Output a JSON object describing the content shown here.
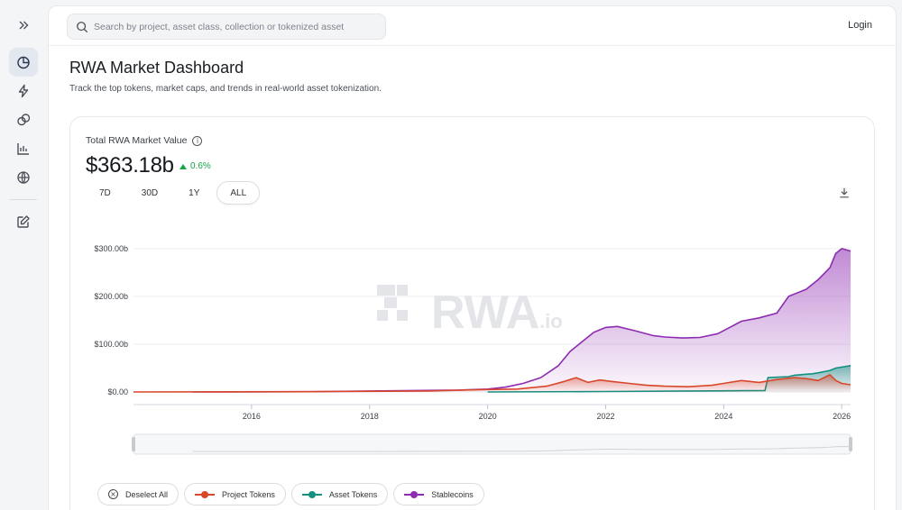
{
  "sidebar": {
    "items": [
      {
        "icon": "expand-icon"
      },
      {
        "icon": "pie-chart-icon",
        "active": true
      },
      {
        "icon": "lightning-icon"
      },
      {
        "icon": "coins-icon"
      },
      {
        "icon": "bar-chart-icon"
      },
      {
        "icon": "globe-icon"
      },
      {
        "icon": "edit-icon"
      }
    ]
  },
  "header": {
    "search_placeholder": "Search by project, asset class, collection or tokenized asset",
    "login_label": "Login"
  },
  "page": {
    "title": "RWA Market Dashboard",
    "subtitle": "Track the top tokens, market caps, and trends in real-world asset tokenization."
  },
  "card": {
    "metric_label": "Total RWA Market Value",
    "info_glyph": "i",
    "metric_value": "$363.18b",
    "metric_change": "0.6%",
    "ranges": [
      {
        "label": "7D"
      },
      {
        "label": "30D"
      },
      {
        "label": "1Y"
      },
      {
        "label": "ALL",
        "selected": true
      }
    ]
  },
  "watermark": {
    "main": "RWA",
    "suffix": ".io"
  },
  "legend": {
    "deselect_label": "Deselect All",
    "deselect_glyph": "×",
    "items": [
      "Project Tokens",
      "Asset Tokens",
      "Stablecoins"
    ]
  },
  "colors": {
    "project_tokens": "#d9472b",
    "asset_tokens": "#158f80",
    "stablecoins": "#8e2bb0",
    "positive": "#16a34a"
  },
  "chart_data": {
    "type": "area",
    "yticks": [
      "$0.00",
      "$100.00b",
      "$200.00b",
      "$300.00b"
    ],
    "xticks": [
      "2016",
      "2018",
      "2020",
      "2022",
      "2024",
      "2026"
    ],
    "ylim": [
      0,
      330
    ],
    "xlim": [
      2014.0,
      2026.15
    ],
    "grid": true,
    "series": [
      {
        "name": "Stablecoins",
        "x": [
          2015.0,
          2017.0,
          2018.0,
          2019.5,
          2020.0,
          2020.3,
          2020.6,
          2020.9,
          2021.2,
          2021.4,
          2021.6,
          2021.8,
          2022.0,
          2022.2,
          2022.5,
          2022.8,
          2023.0,
          2023.3,
          2023.6,
          2023.9,
          2024.1,
          2024.3,
          2024.6,
          2024.9,
          2025.1,
          2025.4,
          2025.6,
          2025.8,
          2025.9,
          2026.0,
          2026.15
        ],
        "y": [
          0,
          0.5,
          2,
          4,
          6,
          10,
          18,
          30,
          55,
          85,
          105,
          125,
          135,
          137,
          128,
          118,
          115,
          113,
          114,
          122,
          135,
          148,
          155,
          165,
          200,
          215,
          235,
          260,
          290,
          300,
          295
        ]
      },
      {
        "name": "Asset Tokens",
        "x": [
          2020.0,
          2022.0,
          2023.5,
          2024.7,
          2024.75,
          2025.1,
          2025.2,
          2025.5,
          2025.6,
          2025.8,
          2025.9,
          2026.15
        ],
        "y": [
          0,
          1,
          2,
          3,
          30,
          32,
          35,
          38,
          40,
          45,
          50,
          55
        ]
      },
      {
        "name": "Project Tokens",
        "x": [
          2014.0,
          2017.0,
          2019.0,
          2020.0,
          2020.5,
          2021.0,
          2021.3,
          2021.5,
          2021.7,
          2021.9,
          2022.1,
          2022.4,
          2022.7,
          2023.0,
          2023.4,
          2023.8,
          2024.0,
          2024.3,
          2024.6,
          2024.9,
          2025.2,
          2025.4,
          2025.6,
          2025.8,
          2025.9,
          2026.0,
          2026.15
        ],
        "y": [
          0,
          0.5,
          2,
          5,
          6,
          12,
          22,
          30,
          20,
          25,
          22,
          18,
          14,
          12,
          11,
          14,
          18,
          24,
          20,
          26,
          30,
          28,
          24,
          36,
          24,
          18,
          15
        ]
      }
    ]
  }
}
